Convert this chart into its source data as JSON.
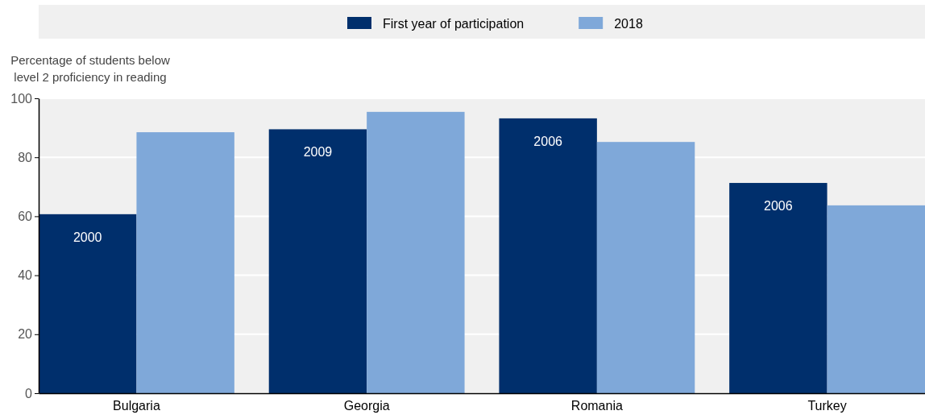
{
  "chart_data": {
    "type": "bar",
    "ylabel": "Percentage of students below level 2 proficiency in reading",
    "categories": [
      "Bulgaria",
      "Georgia",
      "Romania",
      "Turkey"
    ],
    "series": [
      {
        "name": "First year of participation",
        "color": "#002f6c",
        "values": [
          60.7,
          89.5,
          93.2,
          71.3
        ]
      },
      {
        "name": "2018",
        "color": "#7fa8d9",
        "values": [
          88.5,
          95.4,
          85.2,
          63.7
        ]
      }
    ],
    "ylim": [
      0,
      100
    ],
    "yticks": [
      0,
      20,
      40,
      60,
      80,
      100
    ],
    "grid": "y",
    "legend": "top",
    "annotations": [
      {
        "text": "2000",
        "x": "Bulgaria",
        "y": 60.7
      },
      {
        "text": "2009",
        "x": "Georgia",
        "y": 89.5
      },
      {
        "text": "2006",
        "x": "Romania",
        "y": 93.2
      },
      {
        "text": "2006",
        "x": "Turkey",
        "y": 71.3
      }
    ]
  }
}
